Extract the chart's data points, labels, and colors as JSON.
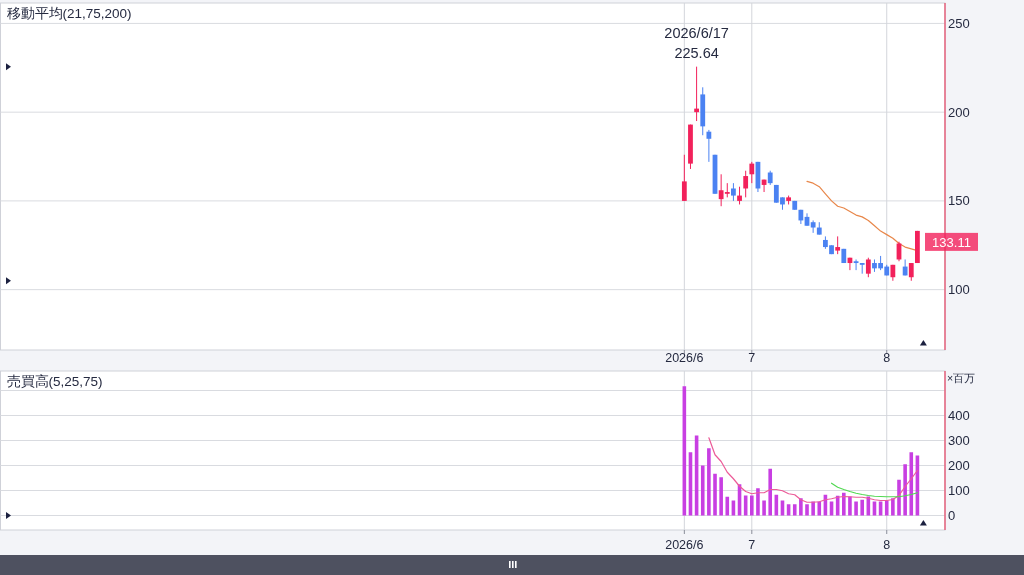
{
  "chart_data": [
    {
      "type": "candlestick",
      "title": "移動平均(21,75,200)",
      "categories": [
        null,
        null,
        null,
        null,
        null,
        null,
        null,
        null,
        null,
        null,
        null,
        null,
        null,
        null,
        null,
        null,
        null,
        null,
        null,
        null,
        null,
        null,
        null,
        null,
        null,
        null,
        null,
        null,
        null,
        null,
        null,
        null,
        null,
        null,
        null,
        null,
        null,
        null,
        null,
        null,
        null,
        null,
        null,
        null,
        null,
        null,
        null,
        null,
        null,
        null,
        null,
        null,
        null,
        null,
        null,
        null,
        null,
        null,
        null,
        null,
        null,
        null,
        null,
        null,
        null,
        null,
        null,
        null,
        null,
        null,
        null,
        null,
        null,
        null,
        null,
        null,
        null,
        null,
        null,
        null,
        null,
        null,
        null,
        null,
        null,
        null,
        null,
        null,
        null,
        null,
        null,
        null,
        null,
        null,
        null,
        null,
        null,
        null,
        null,
        null,
        null,
        null,
        null,
        null,
        null,
        null,
        null,
        null,
        null,
        null,
        null,
        "2026/6",
        null,
        null,
        null,
        null,
        null,
        null,
        null,
        null,
        null,
        null,
        "7",
        null,
        null,
        null,
        null,
        null,
        null,
        null,
        null,
        null,
        null,
        null,
        null,
        null,
        null,
        null,
        null,
        null,
        null,
        null,
        null,
        null,
        "8",
        null,
        null,
        null,
        null,
        null,
        null,
        null,
        null,
        null
      ],
      "ohlc": [
        null,
        null,
        null,
        null,
        null,
        null,
        null,
        null,
        null,
        null,
        null,
        null,
        null,
        null,
        null,
        null,
        null,
        null,
        null,
        null,
        null,
        null,
        null,
        null,
        null,
        null,
        null,
        null,
        null,
        null,
        null,
        null,
        null,
        null,
        null,
        null,
        null,
        null,
        null,
        null,
        null,
        null,
        null,
        null,
        null,
        null,
        null,
        null,
        null,
        null,
        null,
        null,
        null,
        null,
        null,
        null,
        null,
        null,
        null,
        null,
        null,
        null,
        null,
        null,
        null,
        null,
        null,
        null,
        null,
        null,
        null,
        null,
        null,
        null,
        null,
        null,
        null,
        null,
        null,
        null,
        null,
        null,
        null,
        null,
        null,
        null,
        null,
        null,
        null,
        null,
        null,
        null,
        null,
        null,
        null,
        null,
        null,
        null,
        null,
        null,
        null,
        null,
        null,
        null,
        null,
        null,
        null,
        null,
        null,
        null,
        null,
        [
          150,
          176,
          150,
          161
        ],
        [
          171,
          193,
          168,
          193
        ],
        [
          200,
          225.64,
          195,
          202
        ],
        [
          210,
          214,
          187,
          192
        ],
        [
          189,
          190,
          172,
          185
        ],
        [
          176,
          176,
          154,
          154
        ],
        [
          151,
          165,
          147,
          156
        ],
        [
          154,
          160,
          152,
          155
        ],
        [
          157,
          160,
          150,
          153
        ],
        [
          150,
          158,
          148,
          153
        ],
        [
          157,
          167,
          152,
          164
        ],
        [
          165,
          172,
          160,
          171
        ],
        [
          172,
          172,
          155,
          157
        ],
        [
          159,
          162,
          155,
          162
        ],
        [
          166,
          167,
          159,
          160
        ],
        [
          159,
          159,
          149,
          149
        ],
        [
          152,
          152,
          145,
          148
        ],
        [
          150,
          153,
          148,
          152
        ],
        [
          150,
          150,
          145,
          145
        ],
        [
          145,
          145,
          137,
          139
        ],
        [
          141,
          143,
          136,
          136
        ],
        [
          138,
          139,
          132,
          135
        ],
        [
          135,
          138,
          131,
          131
        ],
        [
          128,
          130,
          123,
          124
        ],
        [
          125,
          125,
          120,
          120
        ],
        [
          122,
          130,
          120,
          124
        ],
        [
          123,
          123,
          115,
          115
        ],
        [
          115,
          118,
          111,
          118
        ],
        [
          116,
          117,
          111,
          115
        ],
        [
          115,
          115,
          109,
          114
        ],
        [
          109,
          118,
          107,
          117
        ],
        [
          115,
          117,
          110,
          112
        ],
        [
          115,
          119,
          111,
          112
        ],
        [
          113,
          114,
          108,
          108
        ],
        [
          107,
          114,
          105,
          114
        ],
        [
          117,
          127,
          116,
          126
        ],
        [
          113,
          117,
          108,
          108
        ],
        [
          107,
          115,
          105,
          115
        ],
        [
          115,
          133.11,
          115,
          133.11
        ],
        null,
        null,
        null,
        null
      ],
      "colors": [
        null,
        null,
        null,
        null,
        null,
        null,
        null,
        null,
        null,
        null,
        null,
        null,
        null,
        null,
        null,
        null,
        null,
        null,
        null,
        null,
        null,
        null,
        null,
        null,
        null,
        null,
        null,
        null,
        null,
        null,
        null,
        null,
        null,
        null,
        null,
        null,
        null,
        null,
        null,
        null,
        null,
        null,
        null,
        null,
        null,
        null,
        null,
        null,
        null,
        null,
        null,
        null,
        null,
        null,
        null,
        null,
        null,
        null,
        null,
        null,
        null,
        null,
        null,
        null,
        null,
        null,
        null,
        null,
        null,
        null,
        null,
        null,
        null,
        null,
        null,
        null,
        null,
        null,
        null,
        null,
        null,
        null,
        null,
        null,
        null,
        null,
        null,
        null,
        null,
        null,
        null,
        null,
        null,
        null,
        null,
        null,
        null,
        null,
        null,
        null,
        null,
        null,
        null,
        null,
        null,
        null,
        null,
        null,
        null,
        null,
        null,
        "#f2215b",
        "#f2215b",
        "#f2215b",
        "#4b82f2",
        "#4b82f2",
        "#4b82f2",
        "#f2215b",
        "#f2215b",
        "#4b82f2",
        "#f2215b",
        "#f2215b",
        "#f2215b",
        "#4b82f2",
        "#f2215b",
        "#4b82f2",
        "#4b82f2",
        "#4b82f2",
        "#f2215b",
        "#4b82f2",
        "#4b82f2",
        "#4b82f2",
        "#4b82f2",
        "#4b82f2",
        "#4b82f2",
        "#4b82f2",
        "#f2215b",
        "#4b82f2",
        "#f2215b",
        "#4b82f2",
        "#4b82f2",
        "#f2215b",
        "#4b82f2",
        "#4b82f2",
        "#4b82f2",
        "#f2215b",
        "#f2215b",
        "#4b82f2",
        "#f2215b",
        "#f2215b",
        null,
        null,
        null,
        null
      ],
      "series": [
        {
          "type": "line",
          "color": "#e8874a",
          "values": [
            null,
            null,
            null,
            null,
            null,
            null,
            null,
            null,
            null,
            null,
            null,
            null,
            null,
            null,
            null,
            null,
            null,
            null,
            null,
            null,
            null,
            null,
            null,
            null,
            null,
            null,
            null,
            null,
            null,
            null,
            null,
            null,
            null,
            null,
            null,
            null,
            null,
            null,
            null,
            null,
            null,
            null,
            null,
            null,
            null,
            null,
            null,
            null,
            null,
            null,
            null,
            null,
            null,
            null,
            null,
            null,
            null,
            null,
            null,
            null,
            null,
            null,
            null,
            null,
            null,
            null,
            null,
            null,
            null,
            null,
            null,
            null,
            null,
            null,
            null,
            null,
            null,
            null,
            null,
            null,
            null,
            null,
            null,
            null,
            null,
            null,
            null,
            null,
            null,
            null,
            null,
            null,
            null,
            null,
            null,
            null,
            null,
            null,
            null,
            null,
            null,
            null,
            null,
            null,
            null,
            null,
            null,
            null,
            null,
            null,
            null,
            null,
            null,
            null,
            null,
            null,
            null,
            null,
            null,
            null,
            null,
            null,
            null,
            null,
            null,
            null,
            null,
            null,
            null,
            null,
            null,
            161,
            160,
            158,
            154,
            150,
            147,
            146,
            144,
            142,
            141,
            139,
            136,
            133,
            131,
            129,
            126,
            124,
            123,
            122,
            null,
            null,
            null,
            null
          ]
        }
      ],
      "ylim": [
        66,
        261.5
      ],
      "yticks": [
        100,
        150,
        200,
        250
      ],
      "grid": true,
      "annotations": [
        {
          "text": "2026/6/17\n225.64",
          "y": 225.64
        },
        "133.11"
      ]
    },
    {
      "type": "bar",
      "title": "売買高(5,25,75)",
      "ylabel": "×百万",
      "categories": [
        null,
        null,
        null,
        null,
        null,
        null,
        null,
        null,
        null,
        null,
        null,
        null,
        null,
        null,
        null,
        null,
        null,
        null,
        null,
        null,
        null,
        null,
        null,
        null,
        null,
        null,
        null,
        null,
        null,
        null,
        null,
        null,
        null,
        null,
        null,
        null,
        null,
        null,
        null,
        null,
        null,
        null,
        null,
        null,
        null,
        null,
        null,
        null,
        null,
        null,
        null,
        null,
        null,
        null,
        null,
        null,
        null,
        null,
        null,
        null,
        null,
        null,
        null,
        null,
        null,
        null,
        null,
        null,
        null,
        null,
        null,
        null,
        null,
        null,
        null,
        null,
        null,
        null,
        null,
        null,
        null,
        null,
        null,
        null,
        null,
        null,
        null,
        null,
        null,
        null,
        null,
        null,
        null,
        null,
        null,
        null,
        null,
        null,
        null,
        null,
        null,
        null,
        null,
        null,
        null,
        null,
        null,
        null,
        null,
        null,
        null,
        "2026/6",
        null,
        null,
        null,
        null,
        null,
        null,
        null,
        null,
        null,
        null,
        "7",
        null,
        null,
        null,
        null,
        null,
        null,
        null,
        null,
        null,
        null,
        null,
        null,
        null,
        null,
        null,
        null,
        null,
        null,
        null,
        null,
        null,
        "8",
        null,
        null,
        null,
        null,
        null,
        null,
        null,
        null,
        null
      ],
      "series": [
        {
          "color": "#c83fe2",
          "values": [
            null,
            null,
            null,
            null,
            null,
            null,
            null,
            null,
            null,
            null,
            null,
            null,
            null,
            null,
            null,
            null,
            null,
            null,
            null,
            null,
            null,
            null,
            null,
            null,
            null,
            null,
            null,
            null,
            null,
            null,
            null,
            null,
            null,
            null,
            null,
            null,
            null,
            null,
            null,
            null,
            null,
            null,
            null,
            null,
            null,
            null,
            null,
            null,
            null,
            null,
            null,
            null,
            null,
            null,
            null,
            null,
            null,
            null,
            null,
            null,
            null,
            null,
            null,
            null,
            null,
            null,
            null,
            null,
            null,
            null,
            null,
            null,
            null,
            null,
            null,
            null,
            null,
            null,
            null,
            null,
            null,
            null,
            null,
            null,
            null,
            null,
            null,
            null,
            null,
            null,
            null,
            null,
            null,
            null,
            null,
            null,
            null,
            null,
            null,
            null,
            null,
            null,
            null,
            null,
            null,
            null,
            null,
            null,
            null,
            null,
            null,
            517,
            253,
            320,
            200,
            269,
            167,
            153,
            75,
            60,
            125,
            80,
            80,
            109,
            60,
            187,
            83,
            60,
            45,
            45,
            69,
            45,
            56,
            56,
            83,
            56,
            79,
            91,
            76,
            56,
            63,
            76,
            56,
            56,
            60,
            69,
            143,
            205,
            253,
            240,
            null,
            null,
            null,
            null
          ]
        },
        {
          "type": "line",
          "color": "#ec5b98",
          "values": [
            null,
            null,
            null,
            null,
            null,
            null,
            null,
            null,
            null,
            null,
            null,
            null,
            null,
            null,
            null,
            null,
            null,
            null,
            null,
            null,
            null,
            null,
            null,
            null,
            null,
            null,
            null,
            null,
            null,
            null,
            null,
            null,
            null,
            null,
            null,
            null,
            null,
            null,
            null,
            null,
            null,
            null,
            null,
            null,
            null,
            null,
            null,
            null,
            null,
            null,
            null,
            null,
            null,
            null,
            null,
            null,
            null,
            null,
            null,
            null,
            null,
            null,
            null,
            null,
            null,
            null,
            null,
            null,
            null,
            null,
            null,
            null,
            null,
            null,
            null,
            null,
            null,
            null,
            null,
            null,
            null,
            null,
            null,
            null,
            null,
            null,
            null,
            null,
            null,
            null,
            null,
            null,
            null,
            null,
            null,
            null,
            null,
            null,
            null,
            null,
            null,
            null,
            null,
            null,
            null,
            null,
            null,
            null,
            null,
            null,
            null,
            null,
            null,
            null,
            null,
            311,
            243,
            216,
            173,
            147,
            117,
            96,
            87,
            91,
            91,
            104,
            104,
            99,
            87,
            83,
            63,
            53,
            53,
            55,
            63,
            67,
            73,
            76,
            75,
            73,
            73,
            69,
            63,
            60,
            60,
            64,
            80,
            116,
            147,
            180,
            null,
            null,
            null,
            null
          ]
        },
        {
          "type": "line",
          "color": "#52d852",
          "values": [
            null,
            null,
            null,
            null,
            null,
            null,
            null,
            null,
            null,
            null,
            null,
            null,
            null,
            null,
            null,
            null,
            null,
            null,
            null,
            null,
            null,
            null,
            null,
            null,
            null,
            null,
            null,
            null,
            null,
            null,
            null,
            null,
            null,
            null,
            null,
            null,
            null,
            null,
            null,
            null,
            null,
            null,
            null,
            null,
            null,
            null,
            null,
            null,
            null,
            null,
            null,
            null,
            null,
            null,
            null,
            null,
            null,
            null,
            null,
            null,
            null,
            null,
            null,
            null,
            null,
            null,
            null,
            null,
            null,
            null,
            null,
            null,
            null,
            null,
            null,
            null,
            null,
            null,
            null,
            null,
            null,
            null,
            null,
            null,
            null,
            null,
            null,
            null,
            null,
            null,
            null,
            null,
            null,
            null,
            null,
            null,
            null,
            null,
            null,
            null,
            null,
            null,
            null,
            null,
            null,
            null,
            null,
            null,
            null,
            null,
            null,
            null,
            null,
            null,
            null,
            null,
            null,
            null,
            null,
            null,
            null,
            null,
            null,
            null,
            null,
            null,
            null,
            null,
            null,
            null,
            null,
            null,
            null,
            null,
            null,
            129,
            113,
            104,
            96,
            89,
            84,
            80,
            77,
            76,
            75,
            75,
            75,
            79,
            84,
            91,
            null,
            null,
            null,
            null
          ]
        }
      ],
      "ylim": [
        -58,
        578
      ],
      "yticks": [
        0,
        100,
        200,
        300,
        400,
        {
          "value": 500,
          "label": null
        }
      ],
      "grid": true
    }
  ]
}
